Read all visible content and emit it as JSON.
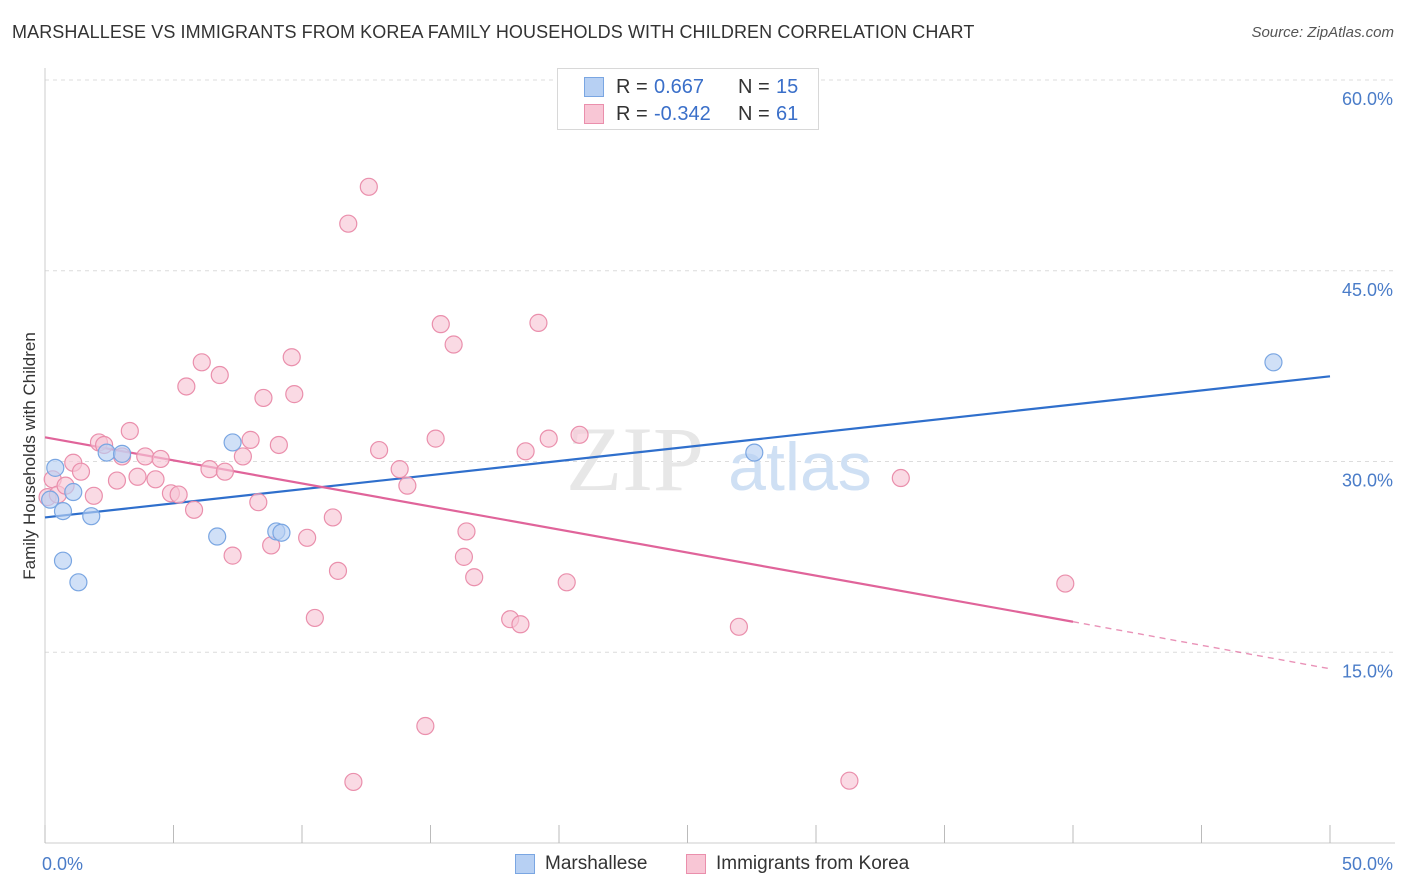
{
  "title": "MARSHALLESE VS IMMIGRANTS FROM KOREA FAMILY HOUSEHOLDS WITH CHILDREN CORRELATION CHART",
  "source": "Source: ZipAtlas.com",
  "watermark": {
    "zip": "ZIP",
    "atlas": "atlas"
  },
  "legend_top": [
    {
      "r_label": "R =",
      "r_value": "0.667",
      "n_label": "N =",
      "n_value": "15"
    },
    {
      "r_label": "R =",
      "r_value": "-0.342",
      "n_label": "N =",
      "n_value": "61"
    }
  ],
  "colors": {
    "blue_fill": "#b7d0f3",
    "blue_stroke": "#7aa6e2",
    "blue_line": "#2f6fcc",
    "pink_fill": "#f8c6d5",
    "pink_stroke": "#ea8fac",
    "pink_line": "#e0649a",
    "axis_text": "#4a7cc8",
    "grid": "#dcdcdc"
  },
  "chart_data": {
    "type": "scatter",
    "xlabel": "",
    "ylabel": "Family Households with Children",
    "xlim": [
      0,
      50
    ],
    "ylim": [
      0,
      60
    ],
    "x_tick_labels": [
      {
        "value": 0,
        "label": "0.0%"
      },
      {
        "value": 50,
        "label": "50.0%"
      }
    ],
    "y_tick_labels": [
      {
        "value": 15,
        "label": "15.0%"
      },
      {
        "value": 30,
        "label": "30.0%"
      },
      {
        "value": 45,
        "label": "45.0%"
      },
      {
        "value": 60,
        "label": "60.0%"
      }
    ],
    "series": [
      {
        "name": "Marshallese",
        "color": "#b7d0f3",
        "points": [
          [
            0.2,
            27.0
          ],
          [
            0.4,
            29.5
          ],
          [
            0.7,
            26.1
          ],
          [
            0.7,
            22.2
          ],
          [
            1.1,
            27.6
          ],
          [
            1.3,
            20.5
          ],
          [
            1.8,
            25.7
          ],
          [
            2.4,
            30.7
          ],
          [
            3.0,
            30.6
          ],
          [
            6.7,
            24.1
          ],
          [
            7.3,
            31.5
          ],
          [
            9.0,
            24.5
          ],
          [
            9.2,
            24.4
          ],
          [
            27.6,
            30.7
          ],
          [
            47.8,
            37.8
          ]
        ],
        "trend": {
          "x": [
            0,
            50
          ],
          "y": [
            25.6,
            36.7
          ]
        }
      },
      {
        "name": "Immigrants from Korea",
        "color": "#f8c6d5",
        "points": [
          [
            0.1,
            27.2
          ],
          [
            0.3,
            28.6
          ],
          [
            0.5,
            27.4
          ],
          [
            0.8,
            28.1
          ],
          [
            1.1,
            29.9
          ],
          [
            1.4,
            29.2
          ],
          [
            1.9,
            27.3
          ],
          [
            2.1,
            31.5
          ],
          [
            2.3,
            31.3
          ],
          [
            2.8,
            28.5
          ],
          [
            3.0,
            30.4
          ],
          [
            3.3,
            32.4
          ],
          [
            3.6,
            28.8
          ],
          [
            3.9,
            30.4
          ],
          [
            4.3,
            28.6
          ],
          [
            4.5,
            30.2
          ],
          [
            4.9,
            27.5
          ],
          [
            5.2,
            27.4
          ],
          [
            5.5,
            35.9
          ],
          [
            5.8,
            26.2
          ],
          [
            6.1,
            37.8
          ],
          [
            6.4,
            29.4
          ],
          [
            6.8,
            36.8
          ],
          [
            7.0,
            29.2
          ],
          [
            7.3,
            22.6
          ],
          [
            7.7,
            30.4
          ],
          [
            8.0,
            31.7
          ],
          [
            8.3,
            26.8
          ],
          [
            8.5,
            35.0
          ],
          [
            8.8,
            23.4
          ],
          [
            9.1,
            31.3
          ],
          [
            9.6,
            38.2
          ],
          [
            9.7,
            35.3
          ],
          [
            10.2,
            24.0
          ],
          [
            10.5,
            17.7
          ],
          [
            11.2,
            25.6
          ],
          [
            11.4,
            21.4
          ],
          [
            11.8,
            48.7
          ],
          [
            12.0,
            4.8
          ],
          [
            12.6,
            51.6
          ],
          [
            13.0,
            30.9
          ],
          [
            13.8,
            29.4
          ],
          [
            14.1,
            28.1
          ],
          [
            14.8,
            9.2
          ],
          [
            15.2,
            31.8
          ],
          [
            15.4,
            40.8
          ],
          [
            15.9,
            39.2
          ],
          [
            16.3,
            22.5
          ],
          [
            16.4,
            24.5
          ],
          [
            16.7,
            20.9
          ],
          [
            18.1,
            17.6
          ],
          [
            18.5,
            17.2
          ],
          [
            18.7,
            30.8
          ],
          [
            19.2,
            40.9
          ],
          [
            19.6,
            31.8
          ],
          [
            20.3,
            20.5
          ],
          [
            20.8,
            32.1
          ],
          [
            27.0,
            17.0
          ],
          [
            31.3,
            4.9
          ],
          [
            33.3,
            28.7
          ],
          [
            39.7,
            20.4
          ]
        ],
        "trend": {
          "x": [
            0,
            40
          ],
          "y": [
            31.9,
            17.4
          ]
        },
        "trend_dashed": {
          "x": [
            40,
            50
          ],
          "y": [
            17.4,
            13.7
          ]
        }
      }
    ],
    "grid": true,
    "legend": "top-center"
  }
}
